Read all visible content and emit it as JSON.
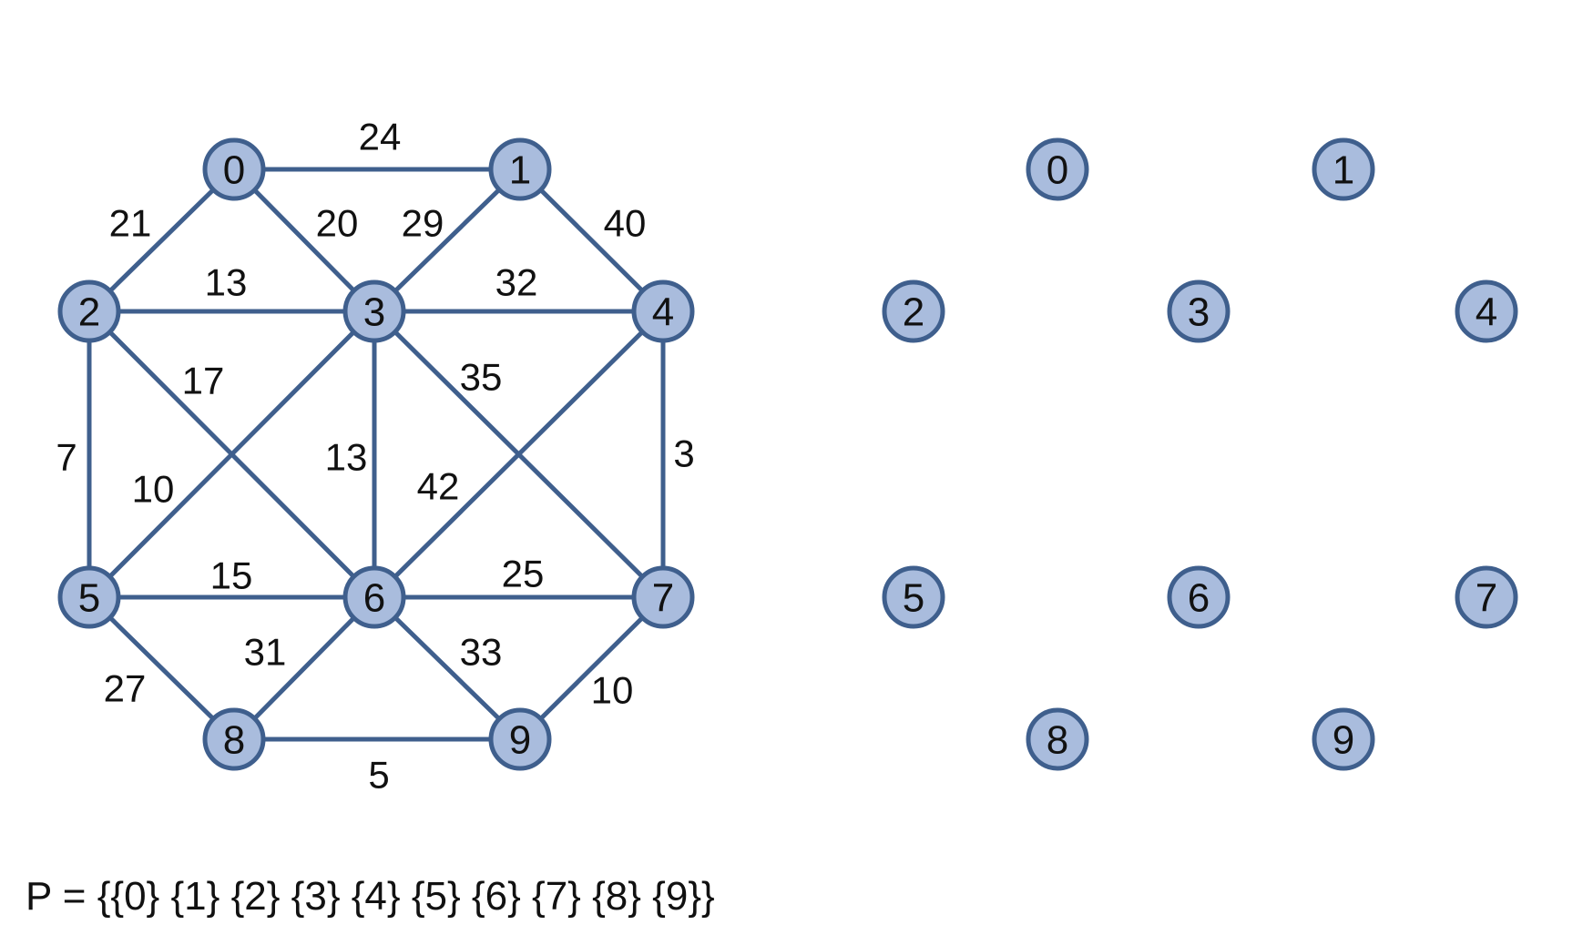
{
  "colors": {
    "node_fill": "#a9bcdd",
    "node_stroke": "#3f5f8d",
    "edge": "#3f5f8d",
    "text": "#111111"
  },
  "graph": {
    "nodes": [
      "0",
      "1",
      "2",
      "3",
      "4",
      "5",
      "6",
      "7",
      "8",
      "9"
    ],
    "edges": [
      {
        "from": "0",
        "to": "1",
        "weight": "24"
      },
      {
        "from": "0",
        "to": "2",
        "weight": "21"
      },
      {
        "from": "0",
        "to": "3",
        "weight": "20"
      },
      {
        "from": "1",
        "to": "3",
        "weight": "29"
      },
      {
        "from": "1",
        "to": "4",
        "weight": "40"
      },
      {
        "from": "2",
        "to": "3",
        "weight": "13"
      },
      {
        "from": "3",
        "to": "4",
        "weight": "32"
      },
      {
        "from": "2",
        "to": "6",
        "weight": "17"
      },
      {
        "from": "3",
        "to": "7",
        "weight": "35"
      },
      {
        "from": "2",
        "to": "5",
        "weight": "7"
      },
      {
        "from": "3",
        "to": "5",
        "weight": "10"
      },
      {
        "from": "3",
        "to": "6",
        "weight": "13"
      },
      {
        "from": "4",
        "to": "6",
        "weight": "42"
      },
      {
        "from": "4",
        "to": "7",
        "weight": "3"
      },
      {
        "from": "5",
        "to": "6",
        "weight": "15"
      },
      {
        "from": "6",
        "to": "7",
        "weight": "25"
      },
      {
        "from": "5",
        "to": "8",
        "weight": "27"
      },
      {
        "from": "6",
        "to": "8",
        "weight": "31"
      },
      {
        "from": "6",
        "to": "9",
        "weight": "33"
      },
      {
        "from": "7",
        "to": "9",
        "weight": "10"
      },
      {
        "from": "8",
        "to": "9",
        "weight": "5"
      }
    ]
  },
  "forest": {
    "nodes": [
      "0",
      "1",
      "2",
      "3",
      "4",
      "5",
      "6",
      "7",
      "8",
      "9"
    ]
  },
  "partition": {
    "text": "P = {{0} {1} {2} {3} {4} {5} {6} {7} {8} {9}}"
  }
}
